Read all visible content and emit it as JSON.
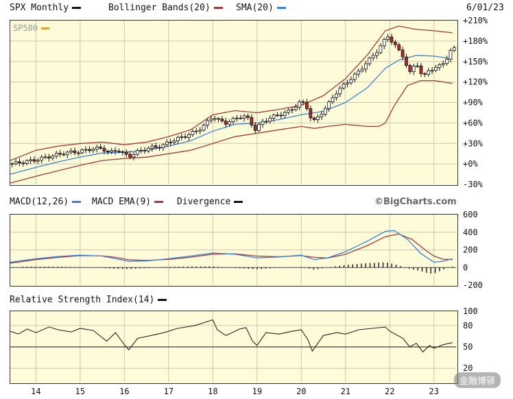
{
  "header": {
    "symbol_label": "SPX Monthly",
    "bollinger_label": "Bollinger Bands(20)",
    "sma_label": "SMA(20)",
    "date": "6/01/23",
    "series_label": "SP500"
  },
  "macd_header": {
    "macd_label": "MACD(12,26)",
    "ema_label": "MACD EMA(9)",
    "divergence_label": "Divergence",
    "source": "©BigCharts.com"
  },
  "rsi_header": {
    "rsi_label": "Relative Strength Index(14)"
  },
  "watermark": "金融博驿",
  "colors": {
    "black": "#111111",
    "blue": "#3a7fd9",
    "red": "#a33a3a",
    "gold": "#d8a13a",
    "up_candle": "#ffffff",
    "down_candle": "#b02a2a",
    "panel_bg": "#fdfbd8"
  },
  "chart_data": [
    {
      "type": "candlestick",
      "name": "price",
      "y_unit": "% change",
      "ylim": [
        -30,
        210
      ],
      "yticks": [
        "+210%",
        "+180%",
        "+150%",
        "+120%",
        "+90%",
        "+60%",
        "+30%",
        "+0%",
        "-30%"
      ],
      "ytick_values": [
        210,
        180,
        150,
        120,
        90,
        60,
        30,
        0,
        -30
      ],
      "xticks": [
        "14",
        "15",
        "16",
        "17",
        "18",
        "19",
        "20",
        "21",
        "22",
        "23"
      ],
      "xtick_positions": [
        2014,
        2015,
        2016,
        2017,
        2018,
        2019,
        2020,
        2021,
        2022,
        2023
      ],
      "x_range": [
        2013.42,
        2023.5
      ],
      "close_path": [
        [
          2013.42,
          0
        ],
        [
          2013.75,
          3
        ],
        [
          2014.0,
          6
        ],
        [
          2014.25,
          10
        ],
        [
          2014.5,
          14
        ],
        [
          2014.75,
          17
        ],
        [
          2015.0,
          18
        ],
        [
          2015.25,
          22
        ],
        [
          2015.5,
          23
        ],
        [
          2015.65,
          16
        ],
        [
          2015.85,
          21
        ],
        [
          2016.0,
          14
        ],
        [
          2016.1,
          11
        ],
        [
          2016.3,
          18
        ],
        [
          2016.6,
          24
        ],
        [
          2016.85,
          26
        ],
        [
          2017.0,
          32
        ],
        [
          2017.25,
          38
        ],
        [
          2017.5,
          44
        ],
        [
          2017.75,
          53
        ],
        [
          2018.0,
          70
        ],
        [
          2018.15,
          63
        ],
        [
          2018.3,
          60
        ],
        [
          2018.6,
          69
        ],
        [
          2018.75,
          70
        ],
        [
          2018.85,
          61
        ],
        [
          2018.95,
          50
        ],
        [
          2019.1,
          60
        ],
        [
          2019.3,
          68
        ],
        [
          2019.5,
          72
        ],
        [
          2019.75,
          78
        ],
        [
          2020.0,
          92
        ],
        [
          2020.15,
          81
        ],
        [
          2020.25,
          60
        ],
        [
          2020.4,
          70
        ],
        [
          2020.6,
          86
        ],
        [
          2020.75,
          102
        ],
        [
          2021.0,
          118
        ],
        [
          2021.25,
          132
        ],
        [
          2021.5,
          150
        ],
        [
          2021.75,
          168
        ],
        [
          2021.95,
          188
        ],
        [
          2022.1,
          175
        ],
        [
          2022.3,
          158
        ],
        [
          2022.45,
          132
        ],
        [
          2022.6,
          150
        ],
        [
          2022.75,
          125
        ],
        [
          2022.9,
          140
        ],
        [
          2023.0,
          138
        ],
        [
          2023.15,
          145
        ],
        [
          2023.3,
          155
        ],
        [
          2023.42,
          170
        ]
      ],
      "upper_band_path": [
        [
          2013.42,
          5
        ],
        [
          2014.0,
          20
        ],
        [
          2014.5,
          26
        ],
        [
          2015.0,
          30
        ],
        [
          2015.5,
          32
        ],
        [
          2016.0,
          28
        ],
        [
          2016.5,
          32
        ],
        [
          2017.0,
          40
        ],
        [
          2017.5,
          50
        ],
        [
          2018.0,
          72
        ],
        [
          2018.5,
          78
        ],
        [
          2019.0,
          75
        ],
        [
          2019.5,
          80
        ],
        [
          2020.0,
          86
        ],
        [
          2020.5,
          100
        ],
        [
          2021.0,
          125
        ],
        [
          2021.5,
          160
        ],
        [
          2021.9,
          195
        ],
        [
          2022.2,
          202
        ],
        [
          2022.6,
          197
        ],
        [
          2023.0,
          195
        ],
        [
          2023.42,
          192
        ]
      ],
      "lower_band_path": [
        [
          2013.42,
          -28
        ],
        [
          2014.0,
          -18
        ],
        [
          2014.5,
          -10
        ],
        [
          2015.0,
          -2
        ],
        [
          2015.5,
          5
        ],
        [
          2016.0,
          8
        ],
        [
          2016.5,
          10
        ],
        [
          2017.0,
          15
        ],
        [
          2017.5,
          20
        ],
        [
          2018.0,
          30
        ],
        [
          2018.5,
          40
        ],
        [
          2019.0,
          45
        ],
        [
          2019.5,
          50
        ],
        [
          2020.0,
          55
        ],
        [
          2020.3,
          52
        ],
        [
          2020.6,
          55
        ],
        [
          2021.0,
          58
        ],
        [
          2021.5,
          55
        ],
        [
          2021.75,
          55
        ],
        [
          2021.9,
          60
        ],
        [
          2022.1,
          85
        ],
        [
          2022.4,
          115
        ],
        [
          2022.7,
          122
        ],
        [
          2023.0,
          122
        ],
        [
          2023.42,
          118
        ]
      ],
      "sma_path": [
        [
          2013.42,
          -15
        ],
        [
          2014.0,
          -5
        ],
        [
          2014.5,
          3
        ],
        [
          2015.0,
          10
        ],
        [
          2015.5,
          16
        ],
        [
          2016.0,
          17
        ],
        [
          2016.5,
          20
        ],
        [
          2017.0,
          26
        ],
        [
          2017.5,
          34
        ],
        [
          2018.0,
          48
        ],
        [
          2018.5,
          58
        ],
        [
          2019.0,
          60
        ],
        [
          2019.5,
          65
        ],
        [
          2020.0,
          72
        ],
        [
          2020.5,
          77
        ],
        [
          2021.0,
          90
        ],
        [
          2021.5,
          112
        ],
        [
          2021.9,
          140
        ],
        [
          2022.2,
          152
        ],
        [
          2022.6,
          159
        ],
        [
          2023.0,
          158
        ],
        [
          2023.42,
          154
        ]
      ]
    },
    {
      "type": "line",
      "name": "macd",
      "ylim": [
        -200,
        600
      ],
      "yticks": [
        "600",
        "400",
        "200",
        "0",
        "-200"
      ],
      "ytick_values": [
        600,
        400,
        200,
        0,
        -200
      ],
      "macd_path": [
        [
          2013.42,
          60
        ],
        [
          2014.0,
          100
        ],
        [
          2014.5,
          125
        ],
        [
          2015.0,
          140
        ],
        [
          2015.5,
          130
        ],
        [
          2015.8,
          100
        ],
        [
          2016.1,
          70
        ],
        [
          2016.5,
          75
        ],
        [
          2017.0,
          100
        ],
        [
          2017.5,
          130
        ],
        [
          2018.0,
          165
        ],
        [
          2018.5,
          150
        ],
        [
          2019.0,
          110
        ],
        [
          2019.5,
          120
        ],
        [
          2020.0,
          140
        ],
        [
          2020.3,
          90
        ],
        [
          2020.6,
          110
        ],
        [
          2021.0,
          180
        ],
        [
          2021.5,
          300
        ],
        [
          2021.9,
          410
        ],
        [
          2022.1,
          420
        ],
        [
          2022.4,
          320
        ],
        [
          2022.7,
          160
        ],
        [
          2023.0,
          60
        ],
        [
          2023.2,
          70
        ],
        [
          2023.42,
          100
        ]
      ],
      "ema_path": [
        [
          2013.42,
          50
        ],
        [
          2014.0,
          90
        ],
        [
          2014.5,
          115
        ],
        [
          2015.0,
          135
        ],
        [
          2015.5,
          132
        ],
        [
          2015.8,
          115
        ],
        [
          2016.1,
          88
        ],
        [
          2016.5,
          80
        ],
        [
          2017.0,
          92
        ],
        [
          2017.5,
          118
        ],
        [
          2018.0,
          152
        ],
        [
          2018.5,
          155
        ],
        [
          2019.0,
          130
        ],
        [
          2019.5,
          122
        ],
        [
          2020.0,
          135
        ],
        [
          2020.3,
          115
        ],
        [
          2020.6,
          108
        ],
        [
          2021.0,
          150
        ],
        [
          2021.5,
          250
        ],
        [
          2021.9,
          350
        ],
        [
          2022.2,
          380
        ],
        [
          2022.5,
          320
        ],
        [
          2022.8,
          200
        ],
        [
          2023.0,
          130
        ],
        [
          2023.2,
          95
        ],
        [
          2023.42,
          90
        ]
      ],
      "divergence": [
        [
          2014.0,
          10
        ],
        [
          2014.5,
          10
        ],
        [
          2015.0,
          5
        ],
        [
          2015.5,
          -5
        ],
        [
          2015.8,
          -15
        ],
        [
          2016.1,
          -18
        ],
        [
          2016.5,
          -5
        ],
        [
          2017.0,
          8
        ],
        [
          2017.5,
          12
        ],
        [
          2018.0,
          13
        ],
        [
          2018.5,
          -5
        ],
        [
          2019.0,
          -20
        ],
        [
          2019.5,
          -2
        ],
        [
          2020.0,
          5
        ],
        [
          2020.3,
          -25
        ],
        [
          2020.6,
          2
        ],
        [
          2021.0,
          30
        ],
        [
          2021.5,
          50
        ],
        [
          2021.9,
          60
        ],
        [
          2022.1,
          40
        ],
        [
          2022.4,
          -10
        ],
        [
          2022.7,
          -40
        ],
        [
          2022.9,
          -70
        ],
        [
          2023.0,
          -70
        ],
        [
          2023.2,
          -25
        ],
        [
          2023.42,
          10
        ]
      ]
    },
    {
      "type": "line",
      "name": "rsi",
      "ylim": [
        0,
        100
      ],
      "yticks": [
        "100",
        "80",
        "50",
        "20"
      ],
      "ytick_values": [
        100,
        80,
        50,
        20
      ],
      "reference_lines": [
        50
      ],
      "rsi_path": [
        [
          2013.42,
          72
        ],
        [
          2013.6,
          68
        ],
        [
          2013.8,
          75
        ],
        [
          2014.0,
          70
        ],
        [
          2014.3,
          78
        ],
        [
          2014.5,
          74
        ],
        [
          2014.8,
          71
        ],
        [
          2015.0,
          76
        ],
        [
          2015.3,
          73
        ],
        [
          2015.6,
          58
        ],
        [
          2015.8,
          70
        ],
        [
          2016.0,
          53
        ],
        [
          2016.1,
          46
        ],
        [
          2016.3,
          62
        ],
        [
          2016.6,
          66
        ],
        [
          2016.9,
          70
        ],
        [
          2017.2,
          76
        ],
        [
          2017.6,
          80
        ],
        [
          2018.0,
          88
        ],
        [
          2018.1,
          74
        ],
        [
          2018.3,
          66
        ],
        [
          2018.6,
          75
        ],
        [
          2018.75,
          77
        ],
        [
          2018.9,
          58
        ],
        [
          2019.0,
          52
        ],
        [
          2019.2,
          70
        ],
        [
          2019.5,
          68
        ],
        [
          2019.8,
          72
        ],
        [
          2020.0,
          74
        ],
        [
          2020.15,
          60
        ],
        [
          2020.25,
          44
        ],
        [
          2020.5,
          66
        ],
        [
          2020.8,
          70
        ],
        [
          2021.0,
          68
        ],
        [
          2021.3,
          74
        ],
        [
          2021.6,
          76
        ],
        [
          2021.9,
          78
        ],
        [
          2022.0,
          72
        ],
        [
          2022.3,
          62
        ],
        [
          2022.45,
          50
        ],
        [
          2022.6,
          55
        ],
        [
          2022.75,
          43
        ],
        [
          2022.9,
          52
        ],
        [
          2023.0,
          48
        ],
        [
          2023.2,
          53
        ],
        [
          2023.42,
          56
        ]
      ]
    }
  ]
}
